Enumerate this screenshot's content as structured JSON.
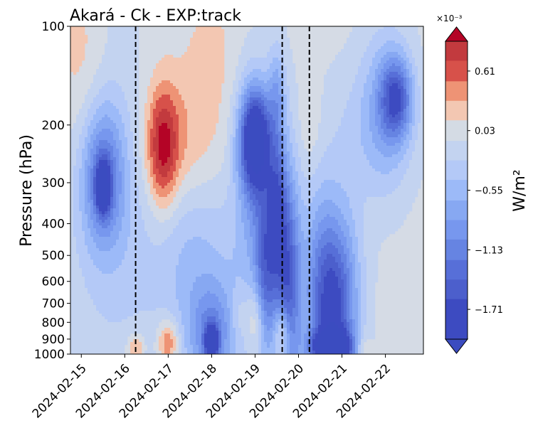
{
  "chart_data": {
    "type": "heatmap",
    "title": "Akará - Ck - EXP:track",
    "ylabel": "Pressure (hPa)",
    "xlabel": "",
    "y_scale": "log",
    "y_inverted": true,
    "ylim": [
      1000,
      100
    ],
    "xlim": [
      "2024-02-14 18:00",
      "2024-02-22 21:00"
    ],
    "y_ticks": [
      "100",
      "200",
      "300",
      "400",
      "500",
      "600",
      "700",
      "800",
      "900",
      "1000"
    ],
    "x_ticks": [
      "2024-02-15",
      "2024-02-16",
      "2024-02-17",
      "2024-02-18",
      "2024-02-19",
      "2024-02-20",
      "2024-02-21",
      "2024-02-22"
    ],
    "vertical_lines": [
      "2024-02-16 06:00",
      "2024-02-19 15:00",
      "2024-02-20 06:00"
    ],
    "vertical_line_style": "dashed black",
    "colorbar": {
      "label": "W/m²",
      "multiplier": "×10⁻³",
      "tick_labels": [
        "0.61",
        "0.03",
        "−0.55",
        "−1.13",
        "−1.71"
      ],
      "tick_values_e3": [
        0.61,
        0.03,
        -0.55,
        -1.13,
        -1.71
      ],
      "range_e3": [
        -2.0,
        0.9
      ],
      "extend": "both"
    },
    "colormap": "coolwarm",
    "levels": [
      {
        "from": 0.71,
        "to": 0.9,
        "color": "#c23a3e"
      },
      {
        "from": 0.51,
        "to": 0.71,
        "color": "#d7514a"
      },
      {
        "from": 0.32,
        "to": 0.51,
        "color": "#ee9375"
      },
      {
        "from": 0.13,
        "to": 0.32,
        "color": "#f3c7b2"
      },
      {
        "from": -0.07,
        "to": 0.13,
        "color": "#d4dbe4"
      },
      {
        "from": -0.26,
        "to": -0.07,
        "color": "#c3d3f0"
      },
      {
        "from": -0.45,
        "to": -0.26,
        "color": "#b4c9f7"
      },
      {
        "from": -0.65,
        "to": -0.45,
        "color": "#9cbaf8"
      },
      {
        "from": -0.84,
        "to": -0.65,
        "color": "#87a8f2"
      },
      {
        "from": -1.03,
        "to": -0.84,
        "color": "#7797ee"
      },
      {
        "from": -1.23,
        "to": -1.03,
        "color": "#6684e2"
      },
      {
        "from": -1.42,
        "to": -1.23,
        "color": "#576fd8"
      },
      {
        "from": -1.61,
        "to": -1.42,
        "color": "#4c5fcc"
      },
      {
        "from": -2.0,
        "to": -1.61,
        "color": "#3d4bc1"
      }
    ],
    "over_color": "#b40426",
    "under_color": "#3b4cc0",
    "background_color": "#d5dbe5",
    "features": [
      {
        "t": "2024-02-15 00:00",
        "p": 130,
        "dt": 0.6,
        "dp_log": 0.3,
        "v": 0.3
      },
      {
        "t": "2024-02-16 00:00",
        "p": 120,
        "dt": 1.2,
        "dp_log": 0.25,
        "v": 0.2
      },
      {
        "t": "2024-02-15 12:00",
        "p": 290,
        "dt": 0.45,
        "dp_log": 0.2,
        "v": -1.0
      },
      {
        "t": "2024-02-15 12:00",
        "p": 310,
        "dt": 0.15,
        "dp_log": 0.07,
        "v": -1.6
      },
      {
        "t": "2024-02-15 18:00",
        "p": 250,
        "dt": 1.1,
        "dp_log": 0.6,
        "v": -0.5
      },
      {
        "t": "2024-02-16 21:00",
        "p": 235,
        "dt": 0.35,
        "dp_log": 0.18,
        "v": 0.85
      },
      {
        "t": "2024-02-17 06:00",
        "p": 230,
        "dt": 1.0,
        "dp_log": 0.2,
        "v": 0.4
      },
      {
        "t": "2024-02-17 12:00",
        "p": 280,
        "dt": 1.2,
        "dp_log": 0.3,
        "v": 0.2
      },
      {
        "t": "2024-02-18 00:00",
        "p": 120,
        "dt": 0.6,
        "dp_log": 0.2,
        "v": 0.2
      },
      {
        "t": "2024-02-19 00:00",
        "p": 220,
        "dt": 0.35,
        "dp_log": 0.15,
        "v": -1.9
      },
      {
        "t": "2024-02-19 00:00",
        "p": 300,
        "dt": 0.45,
        "dp_log": 0.3,
        "v": -0.6
      },
      {
        "t": "2024-02-18 12:00",
        "p": 550,
        "dt": 1.5,
        "dp_log": 0.5,
        "v": -0.3
      },
      {
        "t": "2024-02-17 12:00",
        "p": 450,
        "dt": 0.8,
        "dp_log": 0.35,
        "v": -0.4
      },
      {
        "t": "2024-02-18 00:00",
        "p": 870,
        "dt": 0.5,
        "dp_log": 0.15,
        "v": -0.8
      },
      {
        "t": "2024-02-18 00:00",
        "p": 920,
        "dt": 0.15,
        "dp_log": 0.05,
        "v": -1.5
      },
      {
        "t": "2024-02-17 00:00",
        "p": 920,
        "dt": 0.25,
        "dp_log": 0.07,
        "v": 0.7
      },
      {
        "t": "2024-02-16 06:00",
        "p": 950,
        "dt": 0.2,
        "dp_log": 0.04,
        "v": 0.5
      },
      {
        "t": "2024-02-18 15:00",
        "p": 760,
        "dt": 0.18,
        "dp_log": 0.08,
        "v": 0.25
      },
      {
        "t": "2024-02-19 00:00",
        "p": 780,
        "dt": 0.2,
        "dp_log": 0.1,
        "v": 0.5
      },
      {
        "t": "2024-02-19 06:00",
        "p": 550,
        "dt": 0.25,
        "dp_log": 0.25,
        "v": -1.0
      },
      {
        "t": "2024-02-19 12:00",
        "p": 350,
        "dt": 0.2,
        "dp_log": 0.2,
        "v": -0.9
      },
      {
        "t": "2024-02-19 18:00",
        "p": 600,
        "dt": 0.3,
        "dp_log": 0.35,
        "v": -1.4
      },
      {
        "t": "2024-02-19 15:00",
        "p": 870,
        "dt": 0.18,
        "dp_log": 0.09,
        "v": 0.85
      },
      {
        "t": "2024-02-19 12:00",
        "p": 160,
        "dt": 0.2,
        "dp_log": 0.15,
        "v": -0.6
      },
      {
        "t": "2024-02-20 12:00",
        "p": 500,
        "dt": 0.4,
        "dp_log": 0.25,
        "v": -0.5
      },
      {
        "t": "2024-02-20 18:00",
        "p": 800,
        "dt": 0.5,
        "dp_log": 0.25,
        "v": -1.2
      },
      {
        "t": "2024-02-20 18:00",
        "p": 950,
        "dt": 0.45,
        "dp_log": 0.05,
        "v": -1.8
      },
      {
        "t": "2024-02-21 00:00",
        "p": 600,
        "dt": 0.5,
        "dp_log": 0.3,
        "v": -0.6
      },
      {
        "t": "2024-02-20 06:00",
        "p": 200,
        "dt": 0.3,
        "dp_log": 0.15,
        "v": 0.2
      },
      {
        "t": "2024-02-21 12:00",
        "p": 200,
        "dt": 1.2,
        "dp_log": 0.2,
        "v": -0.2
      },
      {
        "t": "2024-02-22 06:00",
        "p": 165,
        "dt": 0.35,
        "dp_log": 0.12,
        "v": -1.2
      },
      {
        "t": "2024-02-22 00:00",
        "p": 180,
        "dt": 0.6,
        "dp_log": 0.25,
        "v": -0.6
      },
      {
        "t": "2024-02-21 12:00",
        "p": 950,
        "dt": 0.15,
        "dp_log": 0.04,
        "v": 0.3
      }
    ]
  }
}
